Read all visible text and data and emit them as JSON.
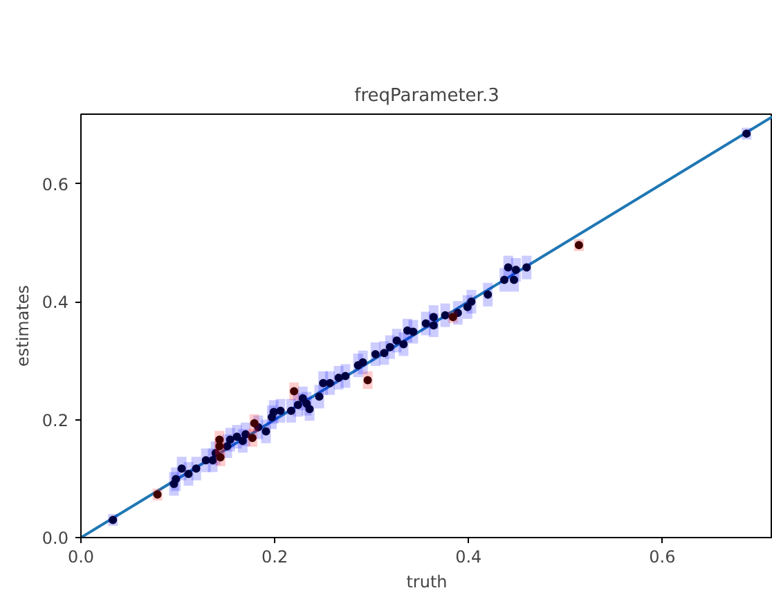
{
  "chart_data": {
    "type": "scatter",
    "title": "freqParameter.3",
    "xlabel": "truth",
    "ylabel": "estimates",
    "xlim": [
      0,
      0.714
    ],
    "ylim": [
      0,
      0.718
    ],
    "xticks": [
      {
        "value": 0,
        "label": "0.0"
      },
      0.2,
      0.4,
      0.6
    ],
    "yticks": [
      {
        "value": 0,
        "label": "0.0"
      },
      0.2,
      0.4,
      0.6
    ],
    "grid": false,
    "marker": "circle",
    "series": [
      {
        "color": "#000040",
        "x": [
          0.033,
          0.096,
          0.098,
          0.104,
          0.111,
          0.119,
          0.129,
          0.136,
          0.139,
          0.151,
          0.154,
          0.161,
          0.167,
          0.17,
          0.183,
          0.191,
          0.197,
          0.206,
          0.199,
          0.217,
          0.224,
          0.229,
          0.233,
          0.236,
          0.246,
          0.25,
          0.257,
          0.266,
          0.273,
          0.286,
          0.291,
          0.304,
          0.313,
          0.319,
          0.326,
          0.333,
          0.337,
          0.343,
          0.356,
          0.364,
          0.364,
          0.376,
          0.389,
          0.399,
          0.403,
          0.42,
          0.437,
          0.441,
          0.447,
          0.449,
          0.46,
          0.687
        ],
        "values": [
          0.03,
          0.091,
          0.099,
          0.117,
          0.108,
          0.117,
          0.131,
          0.131,
          0.143,
          0.155,
          0.166,
          0.171,
          0.164,
          0.175,
          0.187,
          0.18,
          0.204,
          0.215,
          0.213,
          0.215,
          0.225,
          0.236,
          0.227,
          0.218,
          0.239,
          0.262,
          0.262,
          0.271,
          0.274,
          0.292,
          0.297,
          0.311,
          0.313,
          0.323,
          0.334,
          0.328,
          0.351,
          0.349,
          0.363,
          0.374,
          0.36,
          0.377,
          0.381,
          0.391,
          0.4,
          0.412,
          0.437,
          0.458,
          0.437,
          0.454,
          0.458,
          0.685
        ],
        "errors": [
          0.01,
          0.02,
          0.02,
          0.02,
          0.02,
          0.02,
          0.02,
          0.02,
          0.02,
          0.02,
          0.02,
          0.02,
          0.02,
          0.02,
          0.02,
          0.02,
          0.02,
          0.02,
          0.02,
          0.02,
          0.02,
          0.02,
          0.02,
          0.02,
          0.02,
          0.02,
          0.02,
          0.02,
          0.02,
          0.02,
          0.02,
          0.02,
          0.02,
          0.02,
          0.02,
          0.02,
          0.02,
          0.02,
          0.02,
          0.02,
          0.02,
          0.02,
          0.02,
          0.02,
          0.02,
          0.02,
          0.02,
          0.02,
          0.02,
          0.02,
          0.02,
          0.01
        ]
      },
      {
        "color": "#400000",
        "x": [
          0.079,
          0.143,
          0.143,
          0.144,
          0.179,
          0.177,
          0.22,
          0.296,
          0.384,
          0.514
        ],
        "values": [
          0.073,
          0.166,
          0.155,
          0.136,
          0.194,
          0.169,
          0.248,
          0.267,
          0.374,
          0.496
        ],
        "errors": [
          0.01,
          0.015,
          0.015,
          0.015,
          0.015,
          0.015,
          0.015,
          0.015,
          0.01,
          0.01
        ]
      },
      {
        "type": "line",
        "marker": "none",
        "color": "#1f77b4",
        "x": [
          0,
          0.714
        ],
        "values": [
          0,
          0.714
        ]
      }
    ]
  }
}
